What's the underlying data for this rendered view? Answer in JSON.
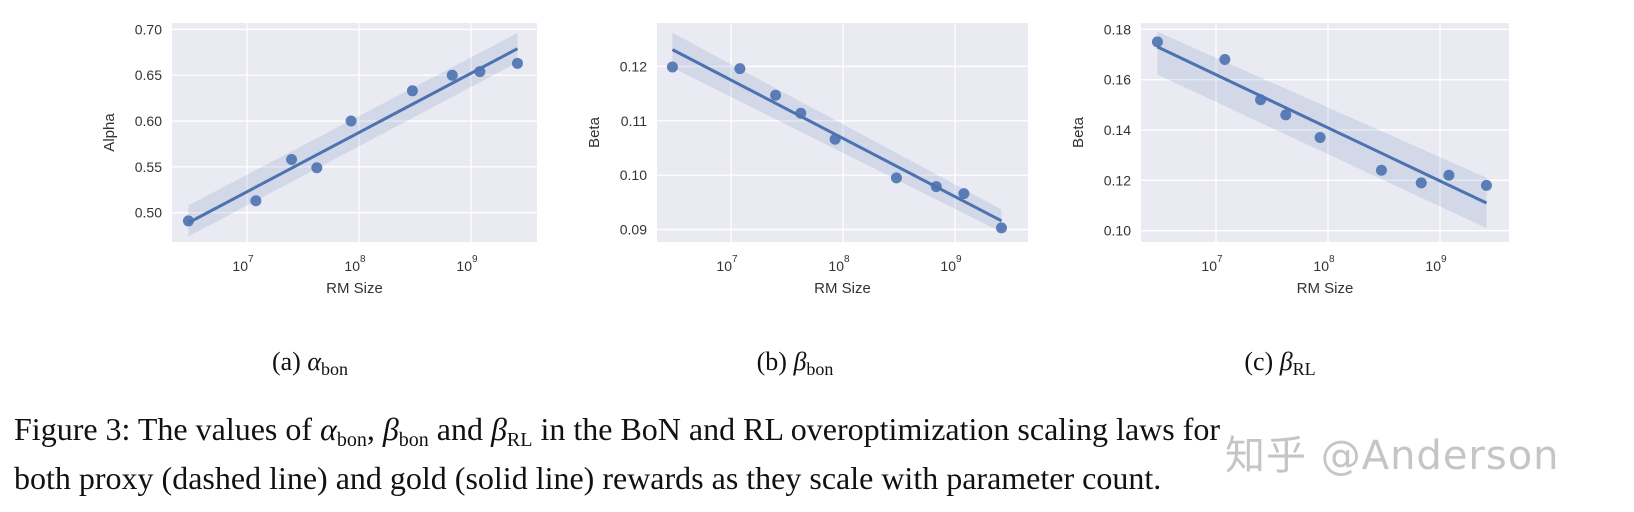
{
  "chart_data": [
    {
      "type": "scatter",
      "panel": "a",
      "subcaption": {
        "prefix": "(a) ",
        "symbol": "α",
        "subscript": "bon"
      },
      "xlabel": "RM Size",
      "ylabel": "Alpha",
      "xscale": "log",
      "xticks": [
        "10^7",
        "10^8",
        "10^9"
      ],
      "yticks": [
        "0.50",
        "0.55",
        "0.60",
        "0.65",
        "0.70"
      ],
      "ylim": [
        0.468,
        0.707
      ],
      "grid": true,
      "x": [
        3000000.0,
        12000000.0,
        25000000.0,
        42000000.0,
        85000000.0,
        300000000.0,
        680000000.0,
        1200000000.0,
        2600000000.0
      ],
      "y": [
        0.491,
        0.513,
        0.558,
        0.549,
        0.6,
        0.633,
        0.65,
        0.654,
        0.663
      ],
      "fit_line": {
        "x": [
          3000000.0,
          2600000000.0
        ],
        "y": [
          0.489,
          0.679
        ]
      },
      "ci_band": {
        "x": [
          3000000.0,
          2600000000.0
        ],
        "lower": [
          0.474,
          0.664
        ],
        "upper": [
          0.508,
          0.696
        ]
      },
      "color": "#4c72b0"
    },
    {
      "type": "scatter",
      "panel": "b",
      "subcaption": {
        "prefix": "(b) ",
        "symbol": "β",
        "subscript": "bon"
      },
      "xlabel": "RM Size",
      "ylabel": "Beta",
      "xscale": "log",
      "xticks": [
        "10^7",
        "10^8",
        "10^9"
      ],
      "yticks": [
        "0.09",
        "0.10",
        "0.11",
        "0.12"
      ],
      "ylim": [
        0.0877,
        0.128
      ],
      "grid": true,
      "x": [
        3000000.0,
        12000000.0,
        25000000.0,
        42000000.0,
        85000000.0,
        300000000.0,
        680000000.0,
        1200000000.0,
        2600000000.0
      ],
      "y": [
        0.1199,
        0.1196,
        0.1147,
        0.1114,
        0.1066,
        0.0995,
        0.0979,
        0.0966,
        0.0903
      ],
      "fit_line": {
        "x": [
          3000000.0,
          2600000000.0
        ],
        "y": [
          0.1231,
          0.0916
        ]
      },
      "ci_band": {
        "x": [
          3000000.0,
          2600000000.0
        ],
        "lower": [
          0.1198,
          0.0895
        ],
        "upper": [
          0.1262,
          0.0937
        ]
      },
      "color": "#4c72b0"
    },
    {
      "type": "scatter",
      "panel": "c",
      "subcaption": {
        "prefix": "(c) ",
        "symbol": "β",
        "subscript": "RL"
      },
      "xlabel": "RM Size",
      "ylabel": "Beta",
      "xscale": "log",
      "xticks": [
        "10^7",
        "10^8",
        "10^9"
      ],
      "yticks": [
        "0.10",
        "0.12",
        "0.14",
        "0.16",
        "0.18"
      ],
      "ylim": [
        0.0955,
        0.1825
      ],
      "grid": true,
      "x": [
        3000000.0,
        12000000.0,
        25000000.0,
        42000000.0,
        85000000.0,
        300000000.0,
        680000000.0,
        1200000000.0,
        2600000000.0
      ],
      "y": [
        0.175,
        0.168,
        0.152,
        0.146,
        0.137,
        0.124,
        0.119,
        0.122,
        0.118
      ],
      "fit_line": {
        "x": [
          3000000.0,
          2600000000.0
        ],
        "y": [
          0.173,
          0.111
        ]
      },
      "ci_band": {
        "x": [
          3000000.0,
          2600000000.0
        ],
        "lower": [
          0.162,
          0.101
        ],
        "upper": [
          0.179,
          0.121
        ]
      },
      "color": "#4c72b0"
    }
  ],
  "caption": {
    "line1_parts": [
      "Figure 3: The values of ",
      "α",
      "bon",
      ", ",
      "β",
      "bon",
      " and ",
      "β",
      "RL",
      " in the BoN and RL overoptimization scaling laws for"
    ],
    "line2": "both proxy (dashed line) and gold (solid line) rewards as they scale with parameter count."
  },
  "watermark": "知乎 @Anderson",
  "style": {
    "plot_bg": "#eaeaf2",
    "grid": "#ffffff",
    "point": "#4c72b0",
    "line": "#4c72b0",
    "band": "#4c72b0"
  }
}
